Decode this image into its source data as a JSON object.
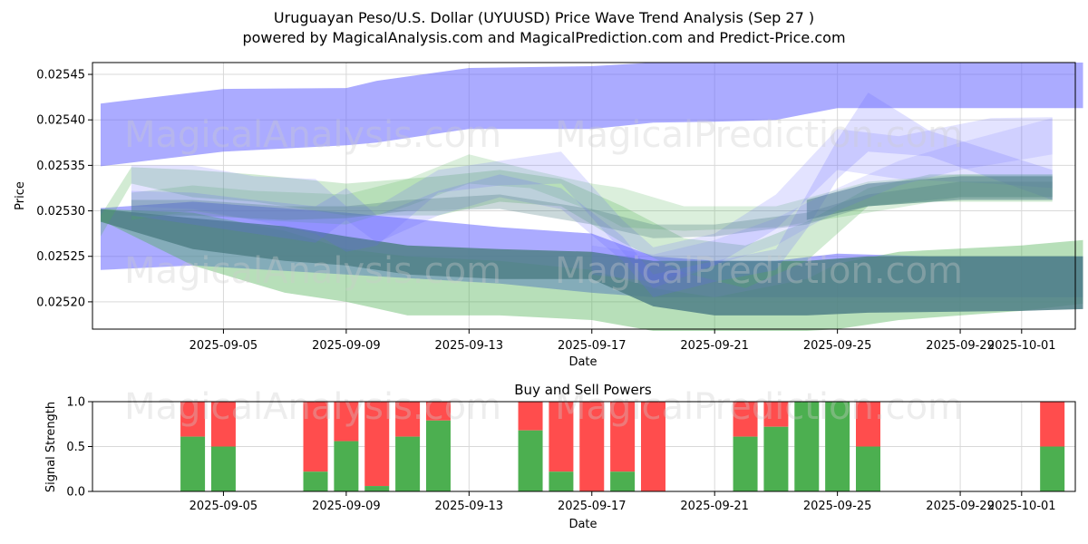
{
  "title_line1": "Uruguayan Peso/U.S. Dollar (UYUUSD) Price Wave Trend Analysis (Sep 27 )",
  "title_line2": "powered by MagicalAnalysis.com and MagicalPrediction.com and Predict-Price.com",
  "watermarks": [
    "MagicalAnalysis.com",
    "MagicalPrediction.com"
  ],
  "colors": {
    "blue": "#6666ff",
    "green": "#4caf50",
    "teal": "#4f7f86",
    "buy": "#4caf50",
    "sell": "#ff4d4d",
    "grid": "#d9d9d9"
  },
  "chart_data": [
    {
      "type": "area",
      "title": "",
      "xlabel": "Date",
      "ylabel": "Price",
      "ylim": [
        0.02517,
        0.025463
      ],
      "xlim": [
        "2025-09-01.6",
        "2025-10-04.6"
      ],
      "x_ticks": [
        "2025-09-05",
        "2025-09-09",
        "2025-09-13",
        "2025-09-17",
        "2025-09-21",
        "2025-09-25",
        "2025-09-29",
        "2025-10-01"
      ],
      "x_tick_days": [
        4,
        8,
        12,
        16,
        20,
        24,
        28,
        30
      ],
      "y_ticks": [
        "0.02520",
        "0.02525",
        "0.02530",
        "0.02535",
        "0.02540",
        "0.02545"
      ],
      "y_tick_values": [
        0.0252,
        0.02525,
        0.0253,
        0.02535,
        0.0254,
        0.02545
      ],
      "grid": true,
      "bands": [
        {
          "color": "blue",
          "opacity": 0.55,
          "days": [
            0,
            4,
            8,
            9,
            12,
            16,
            18,
            20,
            22,
            24,
            26,
            30,
            32
          ],
          "low": [
            0.025349,
            0.025365,
            0.025372,
            0.025375,
            0.02539,
            0.02539,
            0.025397,
            0.025398,
            0.0254,
            0.025413,
            0.025413,
            0.025413,
            0.025413
          ],
          "high": [
            0.025418,
            0.025434,
            0.025435,
            0.025443,
            0.025457,
            0.025459,
            0.025463,
            0.025463,
            0.025463,
            0.025463,
            0.025463,
            0.025463,
            0.025463
          ]
        },
        {
          "color": "blue",
          "opacity": 0.55,
          "days": [
            0,
            3,
            8,
            13,
            16,
            18,
            20,
            22,
            24,
            27,
            32
          ],
          "low": [
            0.025235,
            0.02524,
            0.02523,
            0.02522,
            0.02521,
            0.025205,
            0.025205,
            0.025205,
            0.025205,
            0.025205,
            0.025205
          ],
          "high": [
            0.025303,
            0.02531,
            0.025298,
            0.025282,
            0.025275,
            0.02525,
            0.025245,
            0.025245,
            0.025253,
            0.02525,
            0.02525
          ]
        },
        {
          "color": "green",
          "opacity": 0.4,
          "days": [
            0,
            3,
            6,
            8,
            10,
            13,
            16,
            18,
            20,
            23,
            24,
            26,
            30,
            32
          ],
          "low": [
            0.02529,
            0.02524,
            0.02521,
            0.0252,
            0.025185,
            0.025185,
            0.02518,
            0.025168,
            0.025168,
            0.025168,
            0.02517,
            0.02518,
            0.02519,
            0.025198
          ],
          "high": [
            0.025302,
            0.025298,
            0.025278,
            0.025258,
            0.02525,
            0.025245,
            0.025235,
            0.025215,
            0.025205,
            0.025225,
            0.025242,
            0.025255,
            0.025262,
            0.025268
          ]
        },
        {
          "color": "teal",
          "opacity": 0.85,
          "days": [
            0,
            3,
            6,
            8,
            10,
            13,
            16,
            18,
            20,
            23,
            25,
            30,
            32
          ],
          "low": [
            0.025288,
            0.025258,
            0.025245,
            0.02524,
            0.02523,
            0.025225,
            0.025225,
            0.025195,
            0.025185,
            0.025185,
            0.025188,
            0.02519,
            0.025192
          ],
          "high": [
            0.025302,
            0.025292,
            0.025283,
            0.025272,
            0.025262,
            0.025258,
            0.025255,
            0.025245,
            0.025245,
            0.025245,
            0.02525,
            0.02525,
            0.02525
          ]
        },
        {
          "color": "green",
          "opacity": 0.25,
          "days": [
            0,
            1,
            3,
            5,
            8,
            11,
            13,
            15,
            17,
            19,
            21,
            23,
            25,
            27,
            31
          ],
          "low": [
            0.025272,
            0.02533,
            0.025315,
            0.02531,
            0.025295,
            0.025295,
            0.02531,
            0.025305,
            0.025265,
            0.025232,
            0.025215,
            0.025245,
            0.025305,
            0.02531,
            0.02531
          ],
          "high": [
            0.025295,
            0.025348,
            0.025345,
            0.02534,
            0.02533,
            0.025338,
            0.025345,
            0.025335,
            0.025305,
            0.02527,
            0.025262,
            0.025288,
            0.025325,
            0.02534,
            0.02534
          ]
        },
        {
          "color": "green",
          "opacity": 0.2,
          "days": [
            1,
            3,
            5,
            8,
            10,
            12,
            14,
            16,
            17,
            19,
            22,
            25,
            28,
            31
          ],
          "low": [
            0.02529,
            0.0253,
            0.02529,
            0.025285,
            0.025305,
            0.02533,
            0.025325,
            0.0253,
            0.025282,
            0.025278,
            0.025282,
            0.025298,
            0.025315,
            0.025315
          ],
          "high": [
            0.02532,
            0.025328,
            0.025322,
            0.025318,
            0.025335,
            0.025362,
            0.025345,
            0.02533,
            0.025325,
            0.025305,
            0.025305,
            0.025332,
            0.02534,
            0.02534
          ]
        },
        {
          "color": "blue",
          "opacity": 0.18,
          "days": [
            1,
            3,
            5,
            7,
            8,
            9,
            11,
            13,
            15,
            17,
            18,
            20,
            22,
            24,
            26,
            29,
            31
          ],
          "low": [
            0.025305,
            0.025302,
            0.02529,
            0.025275,
            0.025255,
            0.025262,
            0.02532,
            0.025328,
            0.02533,
            0.025255,
            0.025215,
            0.02524,
            0.02528,
            0.025345,
            0.025335,
            0.02533,
            0.025325
          ],
          "high": [
            0.02535,
            0.02535,
            0.025338,
            0.025335,
            0.025305,
            0.025305,
            0.025345,
            0.025355,
            0.025365,
            0.02529,
            0.02526,
            0.025275,
            0.025318,
            0.02539,
            0.025382,
            0.025402,
            0.025403
          ]
        },
        {
          "color": "blue",
          "opacity": 0.2,
          "days": [
            1,
            3,
            5,
            7,
            8,
            9,
            11,
            13,
            15,
            17,
            18,
            20,
            22,
            23,
            24,
            25,
            27,
            31
          ],
          "low": [
            0.025295,
            0.025285,
            0.025275,
            0.025265,
            0.02529,
            0.025265,
            0.025295,
            0.025315,
            0.025302,
            0.025245,
            0.025205,
            0.025222,
            0.025235,
            0.02528,
            0.025335,
            0.025365,
            0.02536,
            0.025312
          ],
          "high": [
            0.025322,
            0.02532,
            0.025312,
            0.025305,
            0.025325,
            0.025295,
            0.025322,
            0.02534,
            0.025325,
            0.025272,
            0.02523,
            0.025245,
            0.025258,
            0.025318,
            0.025378,
            0.02543,
            0.025388,
            0.025345
          ]
        },
        {
          "color": "teal",
          "opacity": 0.3,
          "days": [
            1,
            3,
            6,
            8,
            10,
            13,
            16,
            18,
            20,
            23,
            25,
            28,
            31
          ],
          "low": [
            0.025295,
            0.025295,
            0.02529,
            0.025292,
            0.0253,
            0.025302,
            0.025285,
            0.02527,
            0.025272,
            0.025285,
            0.025305,
            0.025315,
            0.025315
          ],
          "high": [
            0.025312,
            0.025312,
            0.025305,
            0.025305,
            0.025312,
            0.025318,
            0.025302,
            0.025285,
            0.025285,
            0.025298,
            0.025318,
            0.025332,
            0.025332
          ]
        },
        {
          "color": "teal",
          "opacity": 0.55,
          "days": [
            23,
            25,
            28,
            31
          ],
          "low": [
            0.02529,
            0.025305,
            0.025312,
            0.025312
          ],
          "high": [
            0.025312,
            0.02533,
            0.025338,
            0.025338
          ]
        },
        {
          "color": "blue",
          "opacity": 0.15,
          "days": [
            16,
            18,
            20,
            22,
            24,
            26,
            28,
            31
          ],
          "low": [
            0.02523,
            0.025222,
            0.02524,
            0.025262,
            0.0253,
            0.025328,
            0.025345,
            0.025362
          ],
          "high": [
            0.025262,
            0.025252,
            0.025268,
            0.025292,
            0.025325,
            0.025355,
            0.025375,
            0.025402
          ]
        }
      ]
    },
    {
      "type": "bar",
      "title": "Buy and Sell Powers",
      "xlabel": "Date",
      "ylabel": "Signal Strength",
      "ylim": [
        0,
        1.0
      ],
      "y_ticks": [
        "0.0",
        "0.5",
        "1.0"
      ],
      "y_tick_values": [
        0,
        0.5,
        1.0
      ],
      "x_ticks": [
        "2025-09-05",
        "2025-09-09",
        "2025-09-13",
        "2025-09-17",
        "2025-09-21",
        "2025-09-25",
        "2025-09-29",
        "2025-10-01"
      ],
      "x_tick_days": [
        4,
        8,
        12,
        16,
        20,
        24,
        28,
        30
      ],
      "series": [
        {
          "name": "Buy",
          "color": "buy"
        },
        {
          "name": "Sell",
          "color": "sell"
        }
      ],
      "bars": [
        {
          "day": 3,
          "buy": 0.61
        },
        {
          "day": 4,
          "buy": 0.5
        },
        {
          "day": 7,
          "buy": 0.22
        },
        {
          "day": 8,
          "buy": 0.56
        },
        {
          "day": 9,
          "buy": 0.06
        },
        {
          "day": 10,
          "buy": 0.61
        },
        {
          "day": 11,
          "buy": 0.79
        },
        {
          "day": 14,
          "buy": 0.68
        },
        {
          "day": 15,
          "buy": 0.22
        },
        {
          "day": 16,
          "buy": 0.0
        },
        {
          "day": 17,
          "buy": 0.22
        },
        {
          "day": 18,
          "buy": 0.0
        },
        {
          "day": 21,
          "buy": 0.61
        },
        {
          "day": 22,
          "buy": 0.72
        },
        {
          "day": 23,
          "buy": 1.0
        },
        {
          "day": 24,
          "buy": 1.0
        },
        {
          "day": 25,
          "buy": 0.5
        },
        {
          "day": 31,
          "buy": 0.5
        }
      ]
    }
  ]
}
